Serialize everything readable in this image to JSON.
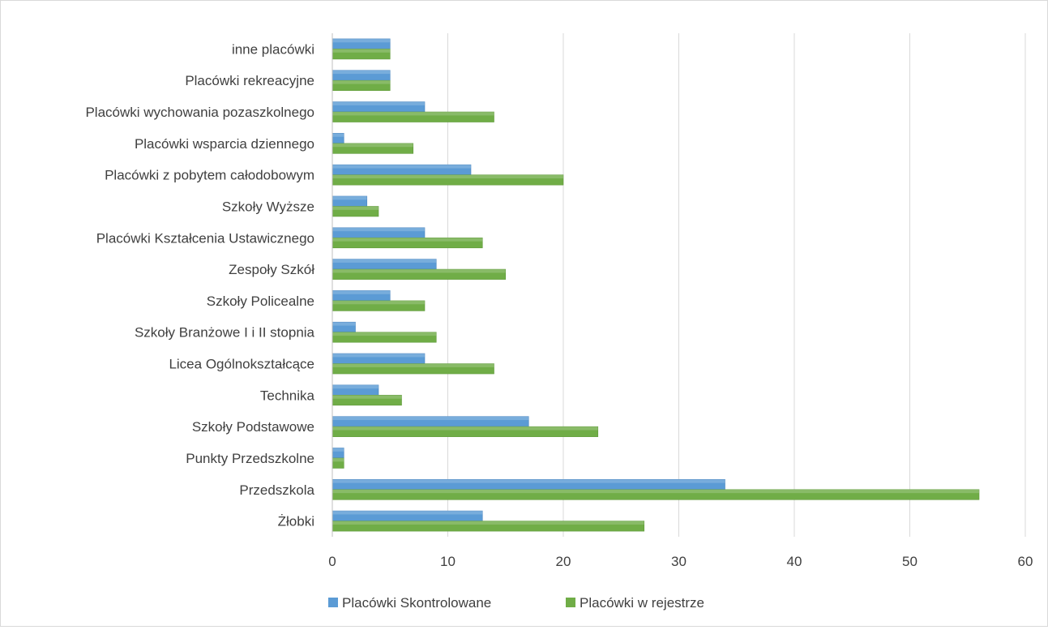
{
  "chart_data": {
    "type": "bar",
    "orientation": "horizontal",
    "categories": [
      "Żłobki",
      "Przedszkola",
      "Punkty Przedszkolne",
      "Szkoły Podstawowe",
      "Technika",
      "Licea Ogólnokształcące",
      "Szkoły Branżowe I i II stopnia",
      "Szkoły Policealne",
      "Zespoły Szkół",
      "Placówki Kształcenia Ustawicznego",
      "Szkoły Wyższe",
      "Placówki z pobytem całodobowym",
      "Placówki wsparcia dziennego",
      "Placówki wychowania pozaszkolnego",
      "Placówki rekreacyjne",
      "inne placówki"
    ],
    "series": [
      {
        "name": "Placówki Skontrolowane",
        "color": "#5b9bd5",
        "values": [
          13,
          34,
          1,
          17,
          4,
          8,
          2,
          5,
          9,
          8,
          3,
          12,
          1,
          8,
          5,
          5
        ]
      },
      {
        "name": "Placówki w rejestrze",
        "color": "#70ad47",
        "values": [
          27,
          56,
          1,
          23,
          6,
          14,
          9,
          8,
          15,
          13,
          4,
          20,
          7,
          14,
          5,
          5
        ]
      }
    ],
    "xlim": [
      0,
      60
    ],
    "xticks": [
      "0",
      "10",
      "20",
      "30",
      "40",
      "50",
      "60"
    ],
    "grid": true,
    "legend_position": "bottom"
  }
}
